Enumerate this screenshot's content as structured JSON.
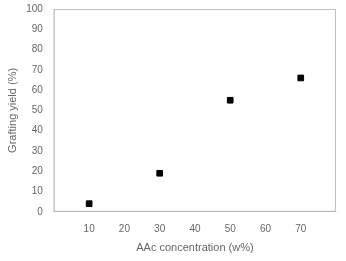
{
  "chart_data": {
    "type": "scatter",
    "x": [
      10,
      30,
      50,
      70
    ],
    "values": [
      4,
      19,
      55,
      66
    ],
    "xlabel": "AAc concentration (w%)",
    "ylabel": "Grafting yield (%)",
    "xlim": [
      0,
      80
    ],
    "ylim": [
      0,
      100
    ],
    "xticks": [
      10,
      20,
      30,
      40,
      50,
      60,
      70
    ],
    "yticks": [
      0,
      10,
      20,
      30,
      40,
      50,
      60,
      70,
      80,
      90,
      100
    ],
    "color": "black",
    "marker": "square",
    "grid": false
  }
}
